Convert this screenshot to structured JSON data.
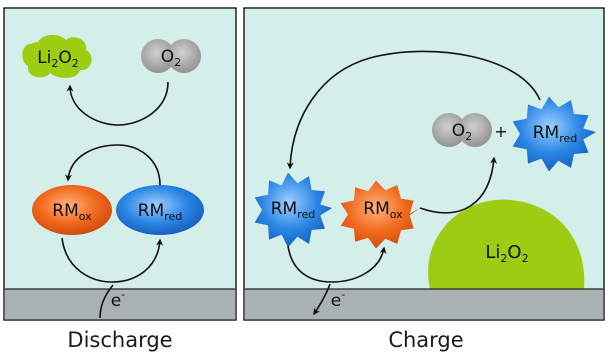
{
  "colors": {
    "panel_bg": "#d4efea",
    "panel_border": "#222222",
    "electrode": "#a9b1b3",
    "li2o2": "#9dcd12",
    "o2": "#9a9a9a",
    "rm_ox": "#f26a1e",
    "rm_red": "#2a86e4",
    "arrow": "#111111"
  },
  "discharge": {
    "caption": "Discharge",
    "li2o2": {
      "main": "Li",
      "sub": "2",
      "main2": "O",
      "sub2": "2"
    },
    "o2": {
      "main": "O",
      "sub": "2"
    },
    "rm_ox": {
      "main": "RM",
      "sub": "ox"
    },
    "rm_red": {
      "main": "RM",
      "sub": "red"
    },
    "electron": {
      "main": "e",
      "sup": "-"
    }
  },
  "charge": {
    "caption": "Charge",
    "rm_red_left": {
      "main": "RM",
      "sub": "red"
    },
    "rm_ox": {
      "main": "RM",
      "sub": "ox"
    },
    "o2": {
      "main": "O",
      "sub": "2"
    },
    "plus": "+",
    "rm_red_right": {
      "main": "RM",
      "sub": "red"
    },
    "li2o2": {
      "main": "Li",
      "sub": "2",
      "main2": "O",
      "sub2": "2"
    },
    "electron": {
      "main": "e",
      "sup": "-"
    }
  }
}
